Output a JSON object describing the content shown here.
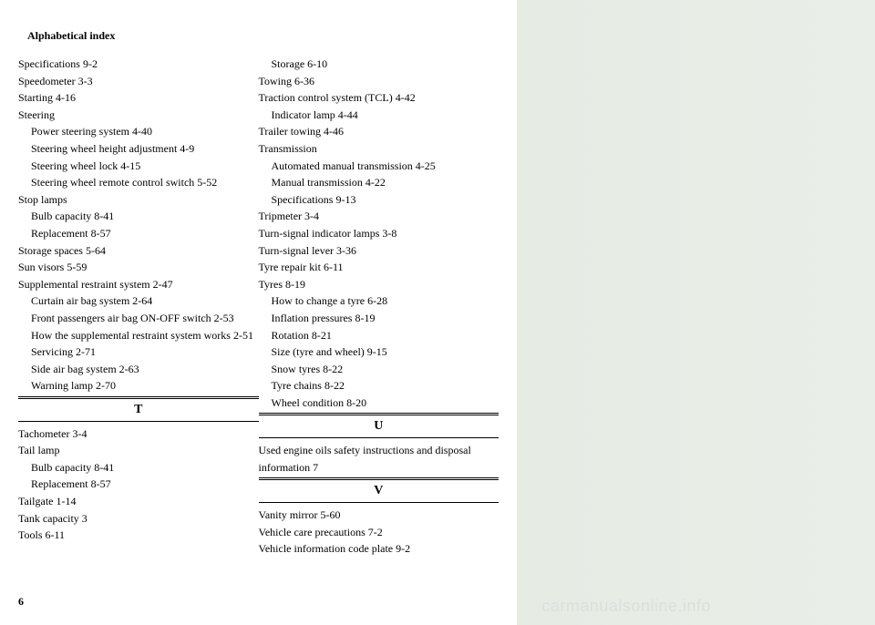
{
  "header": "Alphabetical index",
  "pageNumber": "6",
  "watermark": "carmanualsonline.info",
  "leftColumn": {
    "items": [
      {
        "text": "Specifications  9-2",
        "indent": false
      },
      {
        "text": "Speedometer  3-3",
        "indent": false
      },
      {
        "text": "Starting  4-16",
        "indent": false
      },
      {
        "text": "Steering",
        "indent": false
      },
      {
        "text": "Power steering system  4-40",
        "indent": true
      },
      {
        "text": "Steering wheel height adjustment  4-9",
        "indent": true
      },
      {
        "text": "Steering wheel lock  4-15",
        "indent": true
      },
      {
        "text": "Steering wheel remote control switch  5-52",
        "indent": true
      },
      {
        "text": "Stop lamps",
        "indent": false
      },
      {
        "text": "Bulb capacity  8-41",
        "indent": true
      },
      {
        "text": "Replacement  8-57",
        "indent": true
      },
      {
        "text": "Storage spaces  5-64",
        "indent": false
      },
      {
        "text": "Sun visors  5-59",
        "indent": false
      },
      {
        "text": "Supplemental restraint system  2-47",
        "indent": false
      },
      {
        "text": "Curtain air bag system  2-64",
        "indent": true
      },
      {
        "text": "Front passengers air bag ON-OFF switch  2-53",
        "indent": true
      },
      {
        "text": "How the supplemental restraint system works  2-51",
        "indent": true
      },
      {
        "text": "Servicing  2-71",
        "indent": true
      },
      {
        "text": "Side air bag system  2-63",
        "indent": true
      },
      {
        "text": "Warning lamp  2-70",
        "indent": true
      }
    ],
    "sectionT": "T",
    "itemsT": [
      {
        "text": "Tachometer  3-4",
        "indent": false
      },
      {
        "text": "Tail lamp",
        "indent": false
      },
      {
        "text": "Bulb capacity  8-41",
        "indent": true
      },
      {
        "text": "Replacement  8-57",
        "indent": true
      },
      {
        "text": "Tailgate  1-14",
        "indent": false
      },
      {
        "text": "Tank capacity  3",
        "indent": false
      },
      {
        "text": "Tools  6-11",
        "indent": false
      }
    ]
  },
  "rightColumn": {
    "items": [
      {
        "text": "Storage  6-10",
        "indent": true
      },
      {
        "text": "Towing  6-36",
        "indent": false
      },
      {
        "text": "Traction control system (TCL)  4-42",
        "indent": false
      },
      {
        "text": "Indicator lamp  4-44",
        "indent": true
      },
      {
        "text": "Trailer towing  4-46",
        "indent": false
      },
      {
        "text": "Transmission",
        "indent": false
      },
      {
        "text": "Automated manual transmission  4-25",
        "indent": true
      },
      {
        "text": "Manual transmission  4-22",
        "indent": true
      },
      {
        "text": "Specifications  9-13",
        "indent": true
      },
      {
        "text": "Tripmeter  3-4",
        "indent": false
      },
      {
        "text": "Turn-signal indicator lamps  3-8",
        "indent": false
      },
      {
        "text": "Turn-signal lever  3-36",
        "indent": false
      },
      {
        "text": "Tyre repair kit  6-11",
        "indent": false
      },
      {
        "text": "Tyres  8-19",
        "indent": false
      },
      {
        "text": "How to change a tyre  6-28",
        "indent": true
      },
      {
        "text": "Inflation pressures  8-19",
        "indent": true
      },
      {
        "text": "Rotation  8-21",
        "indent": true
      },
      {
        "text": "Size (tyre and wheel)  9-15",
        "indent": true
      },
      {
        "text": "Snow tyres  8-22",
        "indent": true
      },
      {
        "text": "Tyre chains  8-22",
        "indent": true
      },
      {
        "text": "Wheel condition  8-20",
        "indent": true
      }
    ],
    "sectionU": "U",
    "itemsU": [
      {
        "text": "Used engine oils safety instructions and disposal information  7",
        "indent": false
      }
    ],
    "sectionV": "V",
    "itemsV": [
      {
        "text": "Vanity mirror  5-60",
        "indent": false
      },
      {
        "text": "Vehicle care precautions  7-2",
        "indent": false
      },
      {
        "text": "Vehicle information code plate  9-2",
        "indent": false
      }
    ]
  }
}
